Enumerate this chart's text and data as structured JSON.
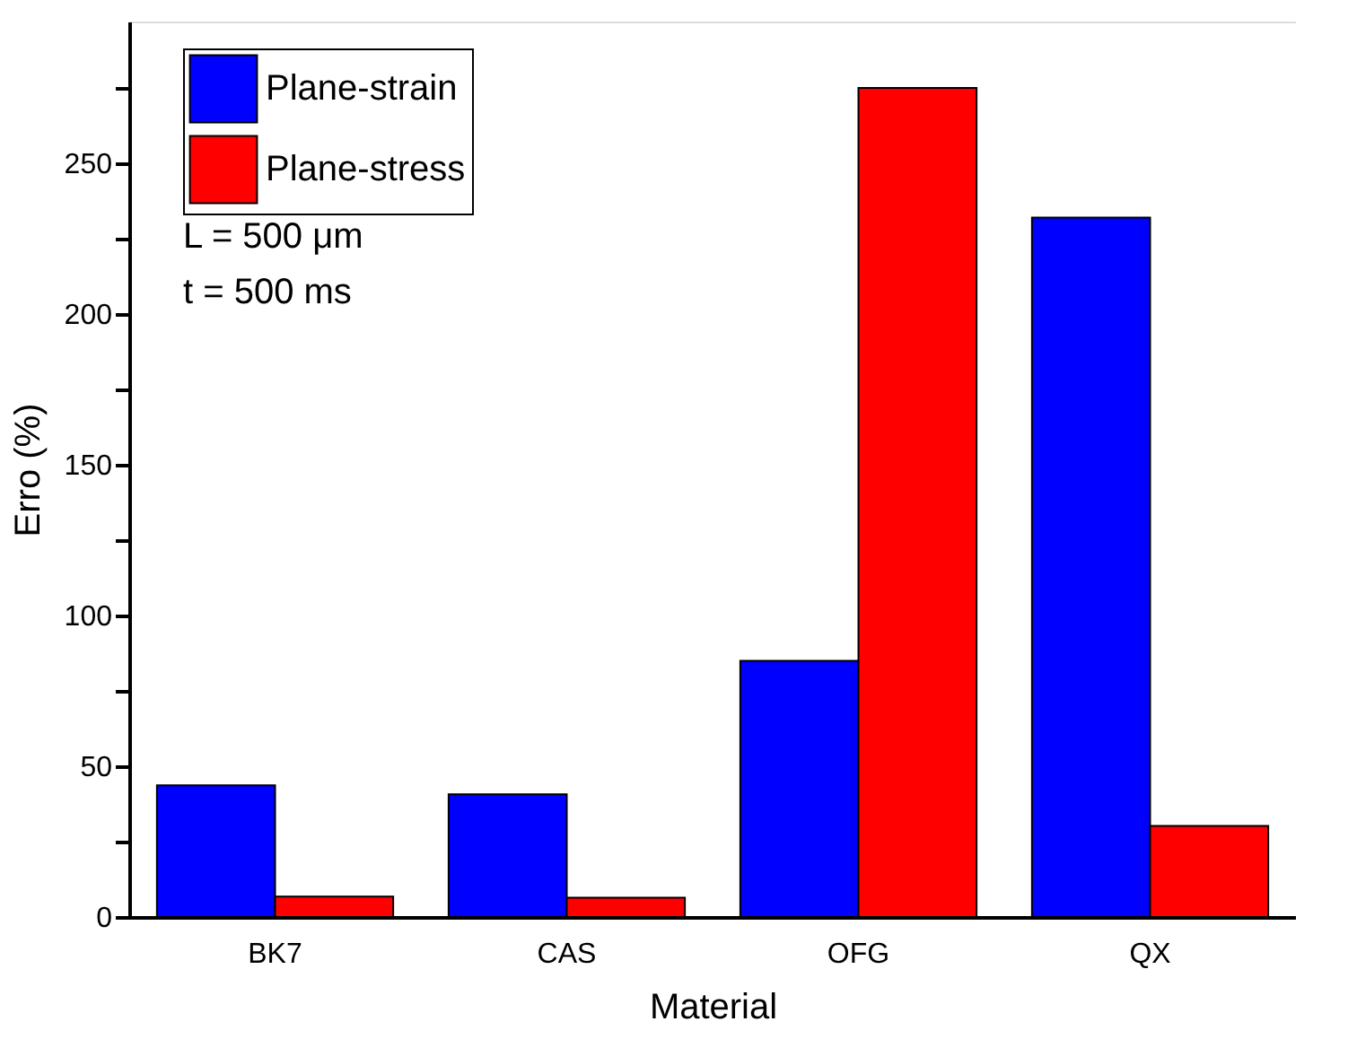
{
  "chart_data": {
    "type": "bar",
    "xlabel": "Material",
    "ylabel": "Erro (%)",
    "categories": [
      "BK7",
      "CAS",
      "OFG",
      "QX"
    ],
    "series": [
      {
        "name": "Plane-strain",
        "color": "#0000ff",
        "values": [
          43.7,
          40.7,
          85,
          232
        ]
      },
      {
        "name": "Plane-stress",
        "color": "#ff0000",
        "values": [
          6.8,
          6.4,
          275,
          30.2
        ]
      }
    ],
    "ylim": [
      0,
      297
    ],
    "yticks": [
      0,
      {
        "value": 25,
        "label": null
      },
      50,
      {
        "value": 75,
        "label": null
      },
      100,
      {
        "value": 125,
        "label": null
      },
      150,
      {
        "value": 175,
        "label": null
      },
      200,
      {
        "value": 225,
        "label": null
      },
      250,
      {
        "value": 275,
        "label": null
      }
    ],
    "annotations": [
      "L = 500 μm",
      "t = 500 ms"
    ],
    "legend": "top left",
    "grid": false
  }
}
